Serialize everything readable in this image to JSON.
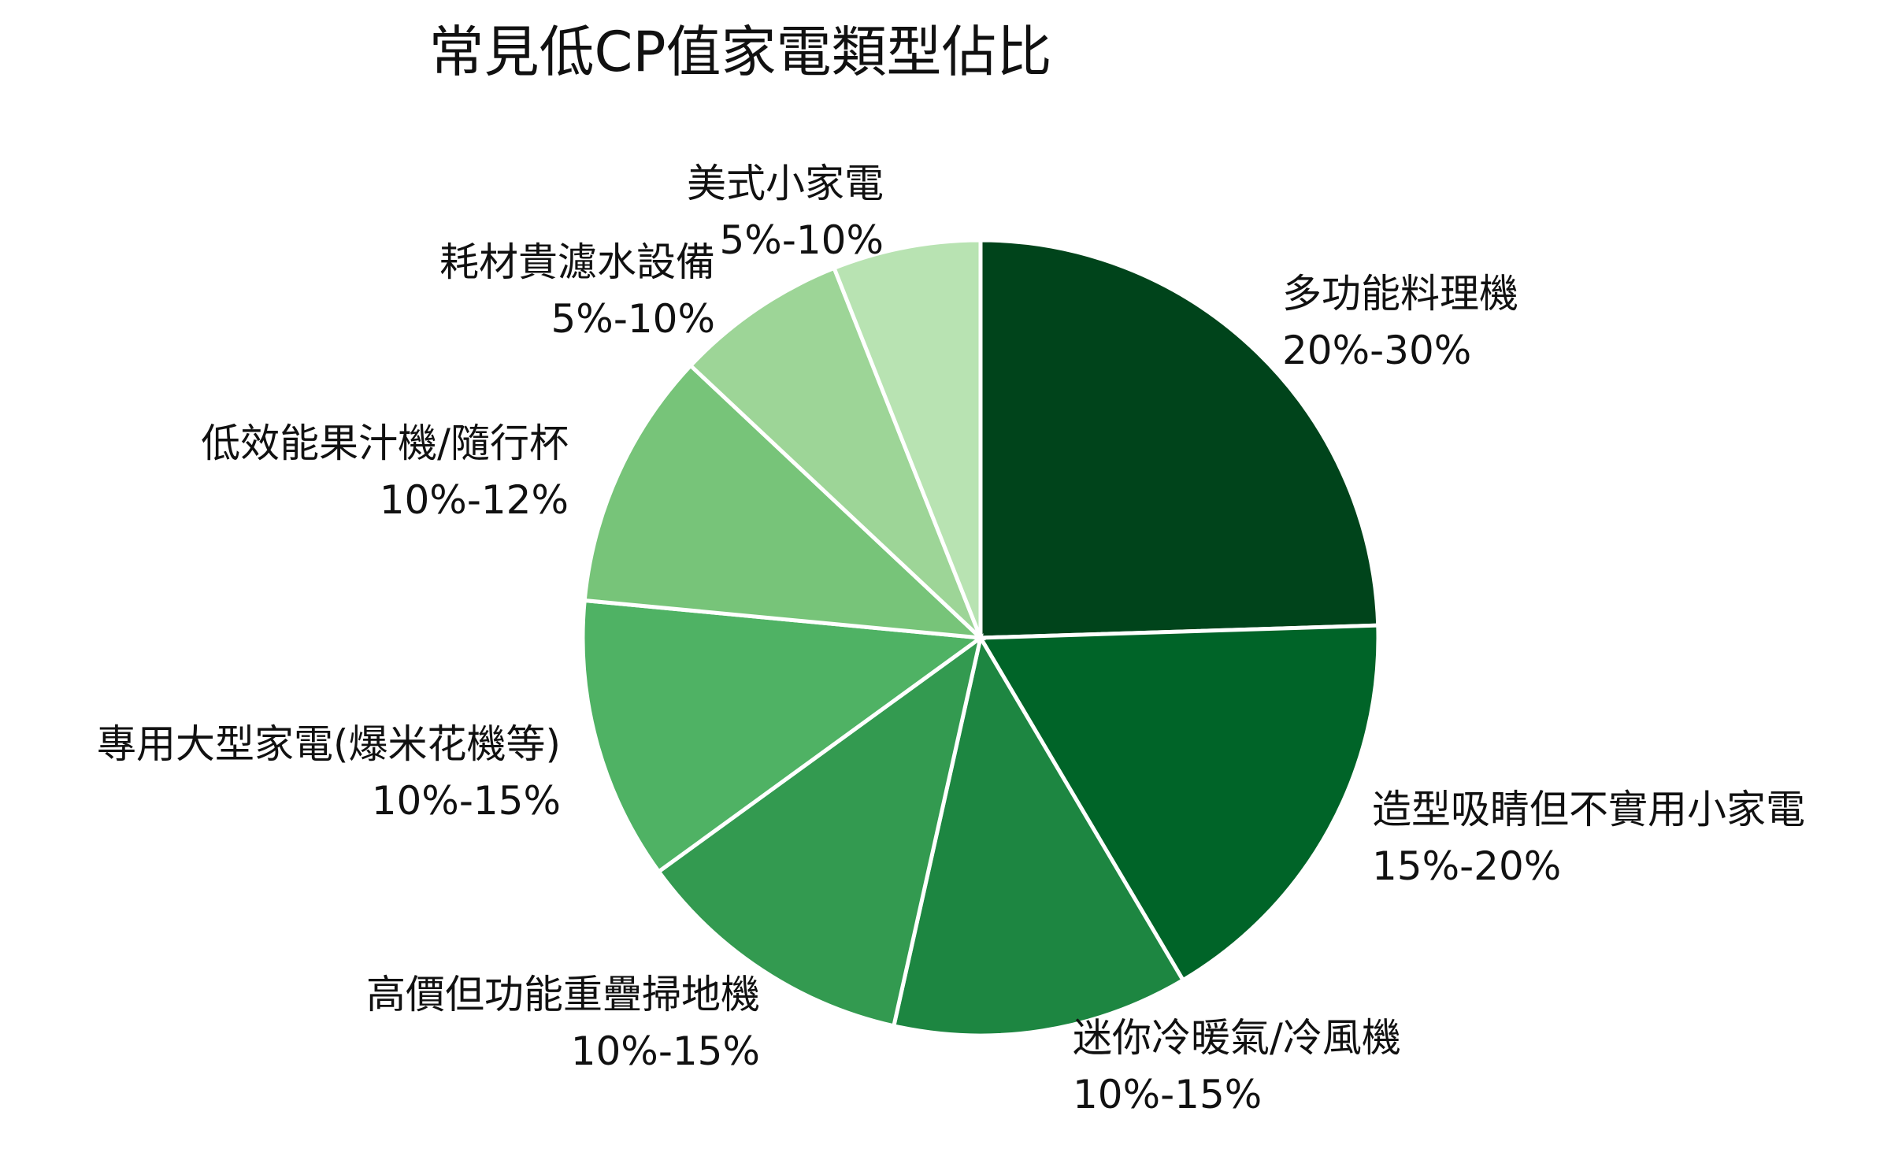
{
  "chart_data": {
    "type": "pie",
    "title": "常見低CP值家電類型佔比",
    "start_angle": "top",
    "direction": "clockwise",
    "legend": "none",
    "slices": [
      {
        "label": "多功能料理機",
        "range_label": "20%-30%",
        "value": 24.5,
        "color": "#00441b"
      },
      {
        "label": "造型吸睛但不實用小家電",
        "range_label": "15%-20%",
        "value": 17.0,
        "color": "#006428"
      },
      {
        "label": "迷你冷暖氣/冷風機",
        "range_label": "10%-15%",
        "value": 12.0,
        "color": "#1d8641"
      },
      {
        "label": "高價但功能重疊掃地機",
        "range_label": "10%-15%",
        "value": 11.5,
        "color": "#339a50"
      },
      {
        "label": "專用大型家電(爆米花機等)",
        "range_label": "10%-15%",
        "value": 11.5,
        "color": "#4fb264"
      },
      {
        "label": "低效能果汁機/隨行杯",
        "range_label": "10%-12%",
        "value": 10.5,
        "color": "#77c479"
      },
      {
        "label": "耗材貴濾水設備",
        "range_label": "5%-10%",
        "value": 7.0,
        "color": "#9dd597"
      },
      {
        "label": "美式小家電",
        "range_label": "5%-10%",
        "value": 6.0,
        "color": "#b8e3b2"
      }
    ]
  }
}
